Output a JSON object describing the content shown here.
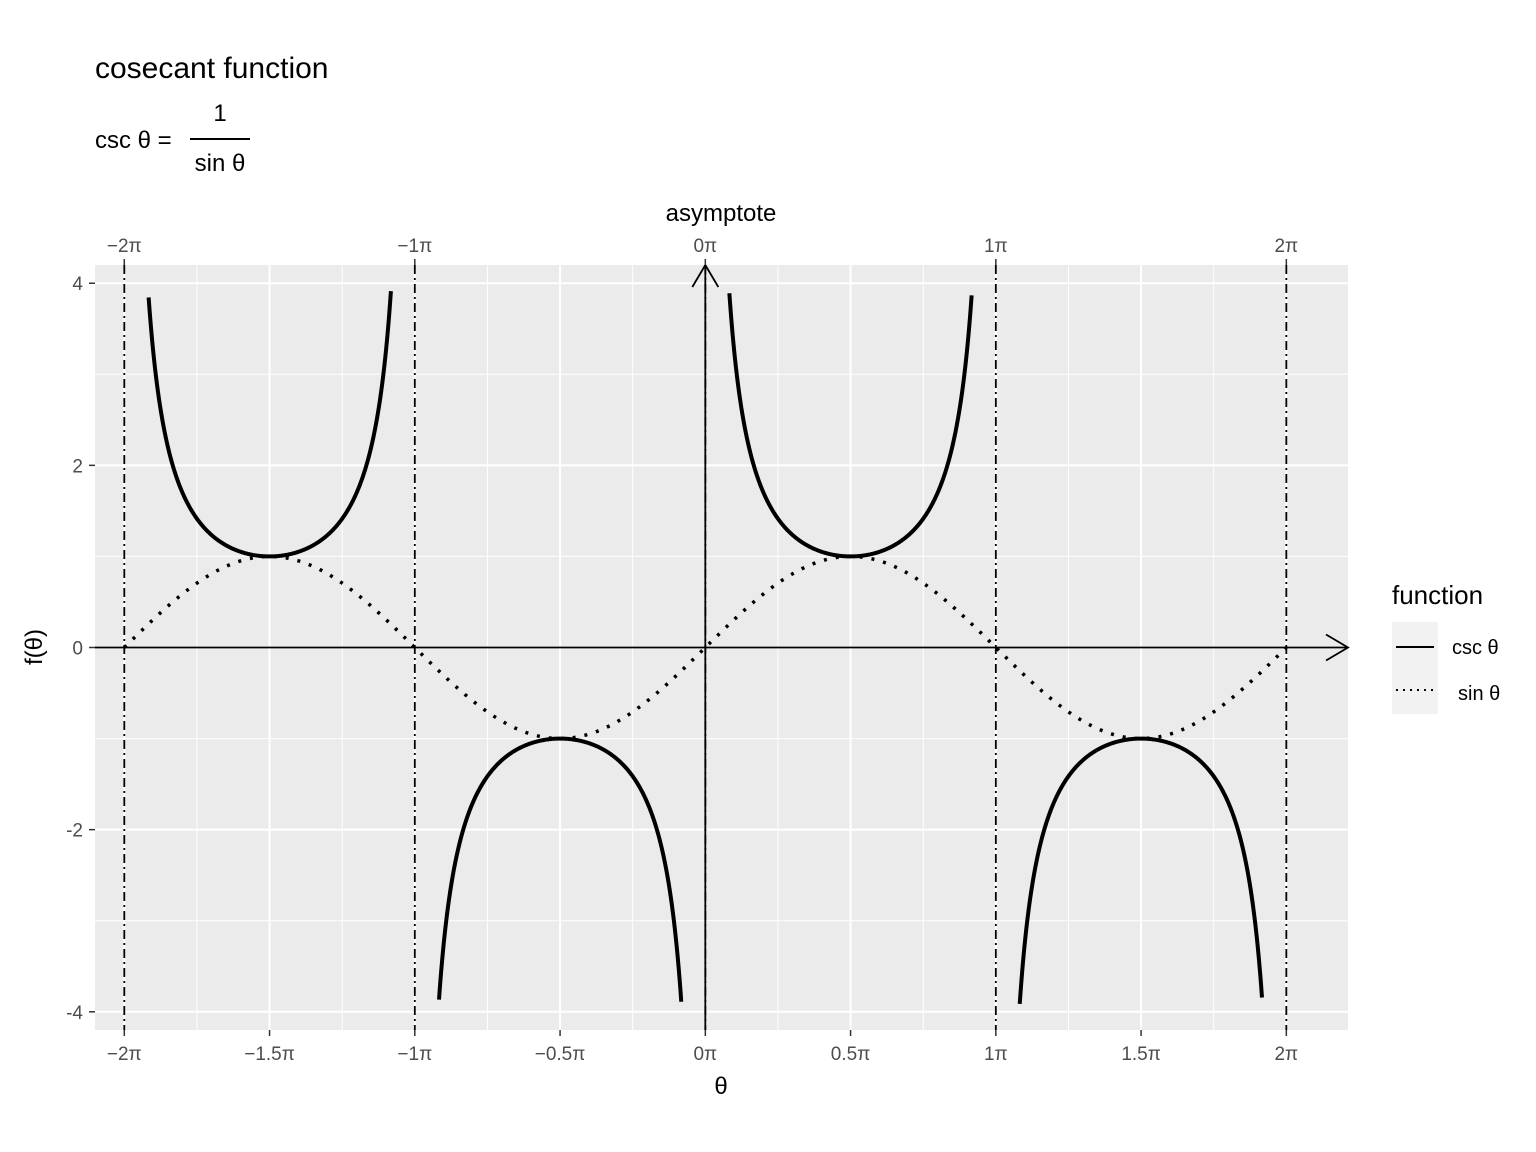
{
  "chart_data": {
    "type": "line",
    "title": "cosecant function",
    "subtitle": {
      "lhs": "csc θ =",
      "numerator": "1",
      "denominator": "sin θ"
    },
    "xlabel": "θ",
    "ylabel": "f(θ)",
    "secondary_xlabel": "asymptote",
    "xlim": [
      -6.6,
      6.95
    ],
    "ylim": [
      -4.2,
      4.2
    ],
    "x_ticks": [
      {
        "value": -6.283185307,
        "label": "−2π"
      },
      {
        "value": -4.71238898,
        "label": "−1.5π"
      },
      {
        "value": -3.141592654,
        "label": "−1π"
      },
      {
        "value": -1.570796327,
        "label": "−0.5π"
      },
      {
        "value": 0,
        "label": "0π"
      },
      {
        "value": 1.570796327,
        "label": "0.5π"
      },
      {
        "value": 3.141592654,
        "label": "1π"
      },
      {
        "value": 4.71238898,
        "label": "1.5π"
      },
      {
        "value": 6.283185307,
        "label": "2π"
      }
    ],
    "x_minor_ticks": [
      -5.497787144,
      -3.926990817,
      -2.35619449,
      -0.785398163,
      0.785398163,
      2.35619449,
      3.926990817,
      5.497787144
    ],
    "y_ticks": [
      {
        "value": -4,
        "label": "-4"
      },
      {
        "value": -2,
        "label": "-2"
      },
      {
        "value": 0,
        "label": "0"
      },
      {
        "value": 2,
        "label": "2"
      },
      {
        "value": 4,
        "label": "4"
      }
    ],
    "y_minor_ticks": [
      -3,
      -1,
      1,
      3
    ],
    "asymptotes": [
      {
        "value": -6.283185307,
        "label": "−2π"
      },
      {
        "value": -3.141592654,
        "label": "−1π"
      },
      {
        "value": 0,
        "label": "0π"
      },
      {
        "value": 3.141592654,
        "label": "1π"
      },
      {
        "value": 6.283185307,
        "label": "2π"
      }
    ],
    "series": [
      {
        "name": "csc θ",
        "linetype": "solid",
        "color": "#000000",
        "function": "csc",
        "segments": [
          [
            -6.02,
            -3.4
          ],
          [
            -2.88,
            -0.26
          ],
          [
            0.26,
            2.88
          ],
          [
            3.4,
            6.02
          ]
        ]
      },
      {
        "name": "sin θ",
        "linetype": "dotted",
        "color": "#000000",
        "function": "sin",
        "segments": [
          [
            -6.283185307,
            6.283185307
          ]
        ]
      }
    ],
    "legend": {
      "title": "function",
      "position": "right",
      "items": [
        {
          "label": "csc θ",
          "linetype": "solid"
        },
        {
          "label": "sin θ",
          "linetype": "dotted"
        }
      ]
    },
    "grid": true,
    "axes_arrows": true
  },
  "colors": {
    "panel_background": "#ebebeb",
    "grid_line": "#ffffff",
    "tick_text": "#4d4d4d",
    "legend_key_background": "#f2f2f2"
  }
}
